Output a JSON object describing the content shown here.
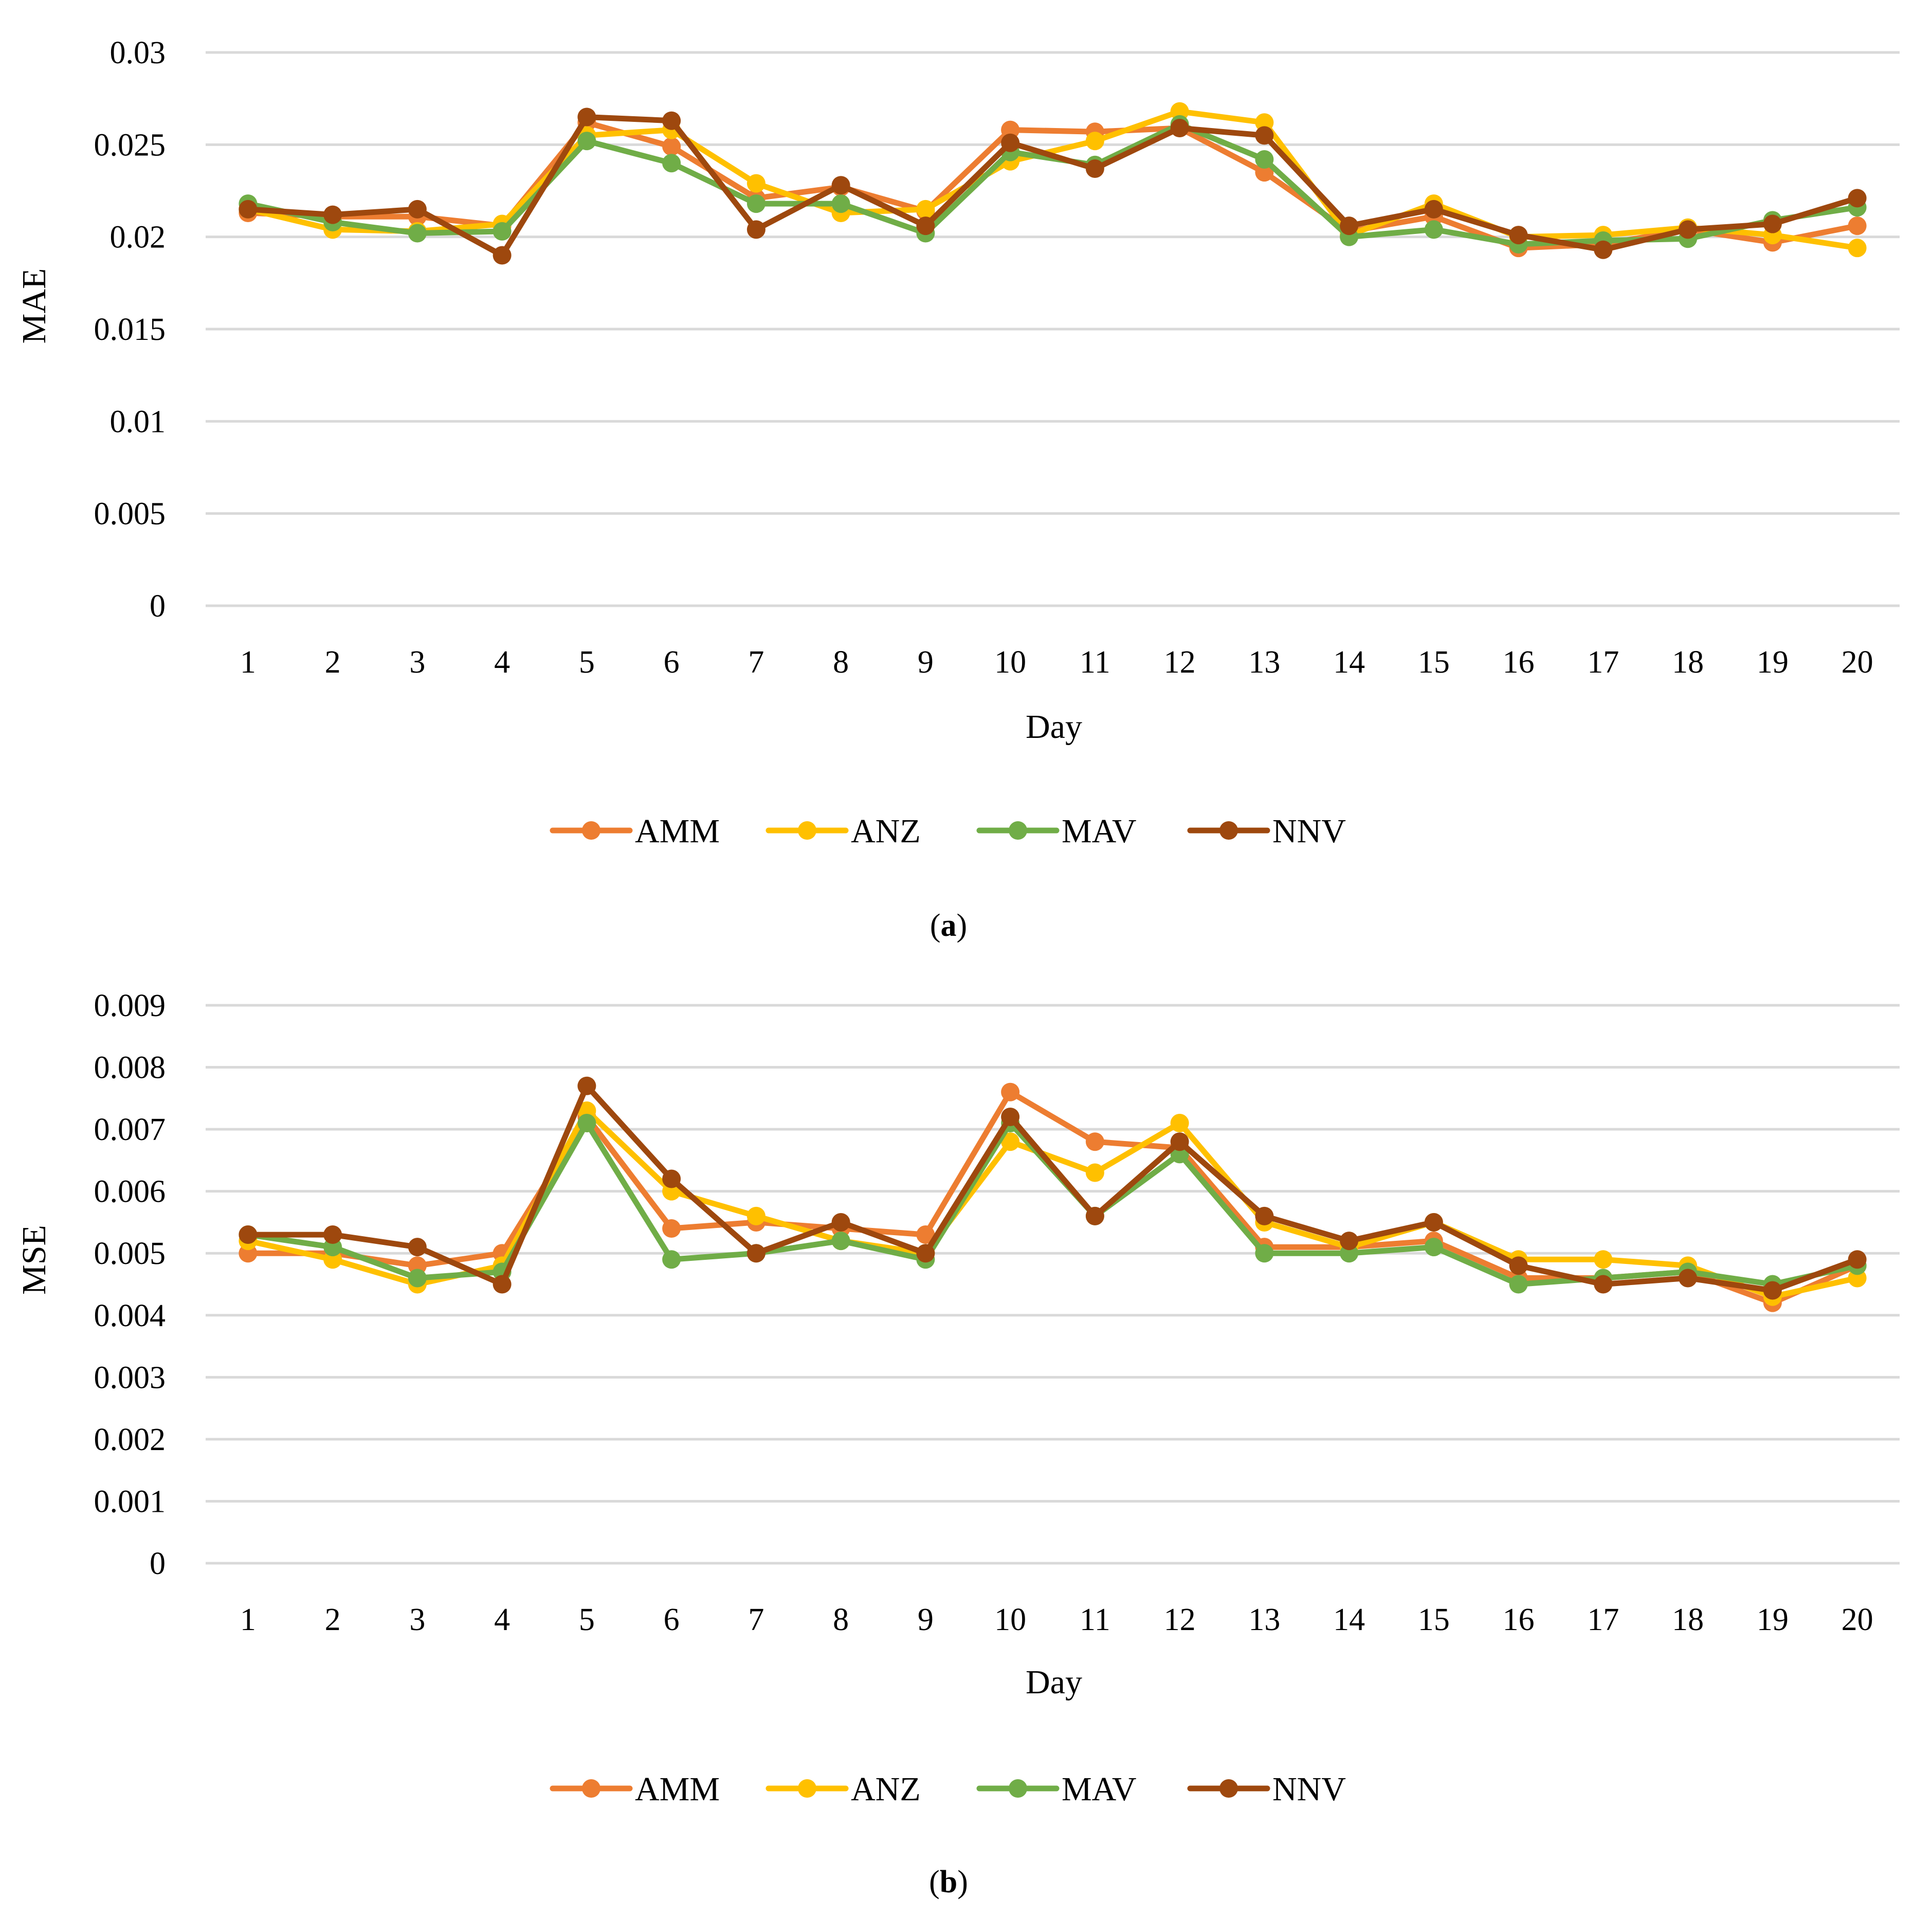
{
  "colors": {
    "AMM": "#ed7d31",
    "ANZ": "#ffc000",
    "MAV": "#70ad47",
    "NNV": "#9e480e",
    "grid": "#d9d9d9"
  },
  "chart_data": [
    {
      "type": "line",
      "panel_label": "a",
      "title": "",
      "xlabel": "Day",
      "ylabel": "MAE",
      "categories": [
        "1",
        "2",
        "3",
        "4",
        "5",
        "6",
        "7",
        "8",
        "9",
        "10",
        "11",
        "12",
        "13",
        "14",
        "15",
        "16",
        "17",
        "18",
        "19",
        "20"
      ],
      "ylim": [
        0,
        0.03
      ],
      "yticks": [
        0,
        0.005,
        0.01,
        0.015,
        0.02,
        0.025,
        0.03
      ],
      "ytick_labels": [
        "0",
        "0.005",
        "0.01",
        "0.015",
        "0.02",
        "0.025",
        "0.03"
      ],
      "grid": true,
      "legend_position": "bottom-center",
      "series": [
        {
          "name": "AMM",
          "values": [
            0.0213,
            0.0211,
            0.0211,
            0.0206,
            0.0262,
            0.0249,
            0.0221,
            0.0227,
            0.0214,
            0.0258,
            0.0257,
            0.0259,
            0.0235,
            0.0203,
            0.0211,
            0.0194,
            0.0196,
            0.0204,
            0.0197,
            0.0206
          ]
        },
        {
          "name": "ANZ",
          "values": [
            0.0215,
            0.0204,
            0.0203,
            0.0207,
            0.0255,
            0.0258,
            0.0229,
            0.0213,
            0.0215,
            0.0241,
            0.0252,
            0.0268,
            0.0262,
            0.0201,
            0.0218,
            0.02,
            0.0201,
            0.0205,
            0.0201,
            0.0194
          ]
        },
        {
          "name": "MAV",
          "values": [
            0.0218,
            0.0208,
            0.0202,
            0.0203,
            0.0252,
            0.024,
            0.0218,
            0.0218,
            0.0202,
            0.0246,
            0.0239,
            0.0261,
            0.0242,
            0.02,
            0.0204,
            0.0196,
            0.0198,
            0.0199,
            0.0209,
            0.0216
          ]
        },
        {
          "name": "NNV",
          "values": [
            0.0215,
            0.0212,
            0.0215,
            0.019,
            0.0265,
            0.0263,
            0.0204,
            0.0228,
            0.0206,
            0.0251,
            0.0237,
            0.0259,
            0.0255,
            0.0206,
            0.0215,
            0.0201,
            0.0193,
            0.0204,
            0.0207,
            0.0221
          ]
        }
      ]
    },
    {
      "type": "line",
      "panel_label": "b",
      "title": "",
      "xlabel": "Day",
      "ylabel": "MSE",
      "categories": [
        "1",
        "2",
        "3",
        "4",
        "5",
        "6",
        "7",
        "8",
        "9",
        "10",
        "11",
        "12",
        "13",
        "14",
        "15",
        "16",
        "17",
        "18",
        "19",
        "20"
      ],
      "ylim": [
        0,
        0.009
      ],
      "yticks": [
        0,
        0.001,
        0.002,
        0.003,
        0.004,
        0.005,
        0.006,
        0.007,
        0.008,
        0.009
      ],
      "ytick_labels": [
        "0",
        "0.001",
        "0.002",
        "0.003",
        "0.004",
        "0.005",
        "0.006",
        "0.007",
        "0.008",
        "0.009"
      ],
      "grid": true,
      "legend_position": "bottom-center",
      "series": [
        {
          "name": "AMM",
          "values": [
            0.005,
            0.005,
            0.0048,
            0.005,
            0.0072,
            0.0054,
            0.0055,
            0.0054,
            0.0053,
            0.0076,
            0.0068,
            0.0067,
            0.0051,
            0.0051,
            0.0052,
            0.0046,
            0.0046,
            0.0047,
            0.0042,
            0.0048
          ]
        },
        {
          "name": "ANZ",
          "values": [
            0.0052,
            0.0049,
            0.0045,
            0.0048,
            0.0073,
            0.006,
            0.0056,
            0.0052,
            0.005,
            0.0068,
            0.0063,
            0.0071,
            0.0055,
            0.0051,
            0.0055,
            0.0049,
            0.0049,
            0.0048,
            0.0043,
            0.0046
          ]
        },
        {
          "name": "MAV",
          "values": [
            0.0053,
            0.0051,
            0.0046,
            0.0047,
            0.0071,
            0.0049,
            0.005,
            0.0052,
            0.0049,
            0.0071,
            0.0056,
            0.0066,
            0.005,
            0.005,
            0.0051,
            0.0045,
            0.0046,
            0.0047,
            0.0045,
            0.0048
          ]
        },
        {
          "name": "NNV",
          "values": [
            0.0053,
            0.0053,
            0.0051,
            0.0045,
            0.0077,
            0.0062,
            0.005,
            0.0055,
            0.005,
            0.0072,
            0.0056,
            0.0068,
            0.0056,
            0.0052,
            0.0055,
            0.0048,
            0.0045,
            0.0046,
            0.0044,
            0.0049
          ]
        }
      ]
    }
  ]
}
